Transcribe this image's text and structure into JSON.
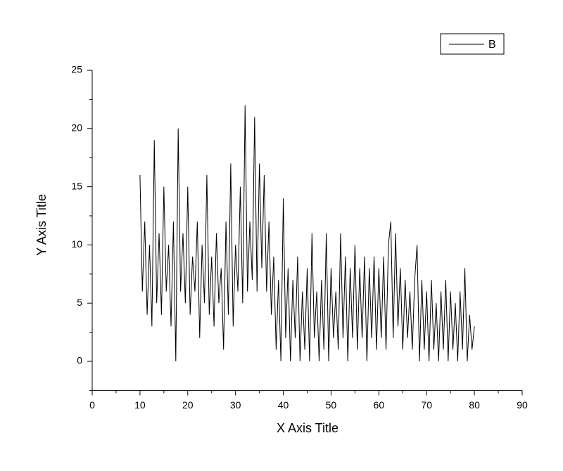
{
  "chart_data": {
    "type": "line",
    "xlabel": "X Axis Title",
    "ylabel": "Y Axis Title",
    "xlim": [
      0,
      90
    ],
    "ylim": [
      -2.5,
      25
    ],
    "xticks": [
      0,
      10,
      20,
      30,
      40,
      50,
      60,
      70,
      80,
      90
    ],
    "yticks": [
      0,
      5,
      10,
      15,
      20,
      25
    ],
    "xminor_ticks": [
      5,
      15,
      25,
      35,
      45,
      55,
      65,
      75,
      85
    ],
    "yminor_ticks": [
      -2.5,
      2.5,
      7.5,
      12.5,
      17.5,
      22.5
    ],
    "legend": "top right",
    "x": [
      10,
      10.5,
      11,
      11.5,
      12,
      12.5,
      13,
      13.5,
      14,
      14.5,
      15,
      15.5,
      16,
      16.5,
      17,
      17.5,
      18,
      18.5,
      19,
      19.5,
      20,
      20.5,
      21,
      21.5,
      22,
      22.5,
      23,
      23.5,
      24,
      24.5,
      25,
      25.5,
      26,
      26.5,
      27,
      27.5,
      28,
      28.5,
      29,
      29.5,
      30,
      30.5,
      31,
      31.5,
      32,
      32.5,
      33,
      33.5,
      34,
      34.5,
      35,
      35.5,
      36,
      36.5,
      37,
      37.5,
      38,
      38.5,
      39,
      39.5,
      40,
      40.5,
      41,
      41.5,
      42,
      42.5,
      43,
      43.5,
      44,
      44.5,
      45,
      45.5,
      46,
      46.5,
      47,
      47.5,
      48,
      48.5,
      49,
      49.5,
      50,
      50.5,
      51,
      51.5,
      52,
      52.5,
      53,
      53.5,
      54,
      54.5,
      55,
      55.5,
      56,
      56.5,
      57,
      57.5,
      58,
      58.5,
      59,
      59.5,
      60,
      60.5,
      61,
      61.5,
      62,
      62.5,
      63,
      63.5,
      64,
      64.5,
      65,
      65.5,
      66,
      66.5,
      67,
      67.5,
      68,
      68.5,
      69,
      69.5,
      70,
      70.5,
      71,
      71.5,
      72,
      72.5,
      73,
      73.5,
      74,
      74.5,
      75,
      75.5,
      76,
      76.5,
      77,
      77.5,
      78,
      78.5,
      79,
      79.5,
      80
    ],
    "series": [
      {
        "name": "B",
        "color": "#000000",
        "values": [
          16,
          6,
          12,
          4,
          10,
          3,
          19,
          5,
          11,
          4,
          15,
          6,
          10,
          3,
          12,
          0,
          20,
          6,
          11,
          5,
          15,
          4,
          9,
          6,
          12,
          2,
          10,
          5,
          16,
          4,
          9,
          3,
          11,
          5,
          8,
          1,
          12,
          4,
          17,
          3,
          10,
          6,
          15,
          5,
          22,
          6,
          12,
          7,
          21,
          6,
          17,
          8,
          16,
          6,
          12,
          4,
          9,
          1,
          7,
          0,
          14,
          2,
          8,
          0,
          7,
          2,
          9,
          0,
          6,
          1,
          8,
          0,
          11,
          2,
          6,
          0,
          7,
          1,
          11,
          0,
          8,
          2,
          6,
          1,
          11,
          2,
          9,
          0,
          8,
          2,
          10,
          1,
          8,
          2,
          9,
          0,
          8,
          2,
          9,
          1,
          8,
          2,
          9,
          1,
          10,
          12,
          2,
          11,
          3,
          8,
          1,
          7,
          2,
          6,
          1,
          7,
          10,
          0,
          7,
          1,
          6,
          0,
          7,
          1,
          5,
          0,
          6,
          1,
          7,
          0,
          6,
          1,
          5,
          0,
          6,
          1,
          8,
          0,
          4,
          1,
          3
        ]
      }
    ]
  }
}
